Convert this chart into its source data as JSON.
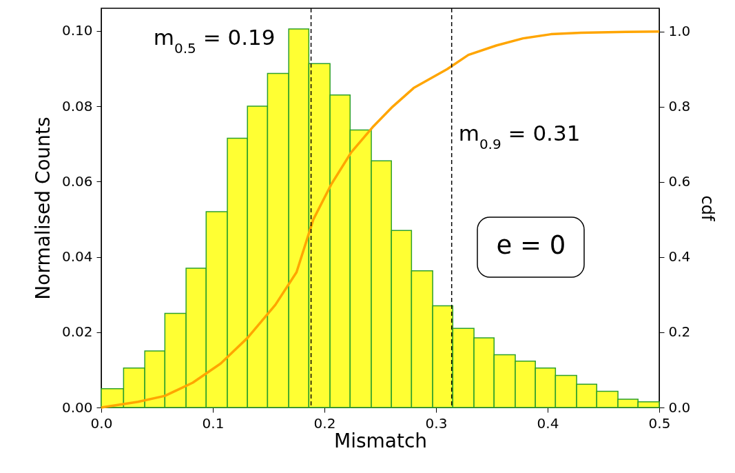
{
  "chart_data": {
    "type": "histogram",
    "xlabel": "Mismatch",
    "ylabel": "Normalised Counts",
    "y2label": "cdf",
    "xlim": [
      0,
      0.5
    ],
    "xticks": [
      {
        "value": 0,
        "label": "0.0"
      },
      0.1,
      0.2,
      0.3,
      0.4,
      {
        "value": 0.5,
        "label": "0.5"
      }
    ],
    "ylim": [
      0,
      0.106
    ],
    "yticks": [
      {
        "value": 0,
        "label": "0.00"
      },
      {
        "value": 0.02,
        "label": "0.02"
      },
      {
        "value": 0.04,
        "label": "0.04"
      },
      {
        "value": 0.06,
        "label": "0.06"
      },
      {
        "value": 0.08,
        "label": "0.08"
      },
      {
        "value": 0.1,
        "label": "0.10"
      }
    ],
    "y2lim": [
      0,
      1.062
    ],
    "y2ticks": [
      {
        "value": 0,
        "label": "0.0"
      },
      0.2,
      0.4,
      0.6,
      0.8,
      {
        "value": 1,
        "label": "1.0"
      }
    ],
    "grid": false,
    "series": [
      {
        "color": "#ffff33",
        "bins": [
          0,
          0.02,
          0.039,
          0.057,
          0.076,
          0.094,
          0.113,
          0.131,
          0.149,
          0.168,
          0.186,
          0.205,
          0.223,
          0.242,
          0.26,
          0.278,
          0.297,
          0.315,
          0.334,
          0.352,
          0.371,
          0.389,
          0.407,
          0.426,
          0.444,
          0.463,
          0.481,
          0.5
        ],
        "values": [
          0.005,
          0.0105,
          0.015,
          0.025,
          0.037,
          0.052,
          0.0715,
          0.08,
          0.0887,
          0.1005,
          0.0913,
          0.083,
          0.0737,
          0.0655,
          0.047,
          0.0363,
          0.027,
          0.021,
          0.0185,
          0.014,
          0.0123,
          0.0105,
          0.0085,
          0.0062,
          0.0043,
          0.0022,
          0.0015
        ]
      },
      {
        "type": "line",
        "axis": "y2",
        "color": "#ffa500",
        "x": [
          0,
          0.033,
          0.057,
          0.082,
          0.107,
          0.131,
          0.156,
          0.175,
          0.19,
          0.206,
          0.224,
          0.243,
          0.261,
          0.28,
          0.31,
          0.329,
          0.354,
          0.378,
          0.403,
          0.43,
          0.47,
          0.5
        ],
        "values": [
          0,
          0.015,
          0.031,
          0.066,
          0.117,
          0.185,
          0.273,
          0.36,
          0.5,
          0.593,
          0.679,
          0.745,
          0.8,
          0.85,
          0.9,
          0.938,
          0.963,
          0.982,
          0.993,
          0.997,
          0.999,
          1.0
        ]
      }
    ],
    "ref_lines": [
      {
        "axis": "x",
        "value": 0.188,
        "label": "m$_{0.5}$ = 0.19",
        "color": "#000000",
        "line_style": "dashed"
      },
      {
        "axis": "x",
        "value": 0.314,
        "label": "m$_{0.9}$ = 0.31",
        "color": "#000000",
        "line_style": "dashed"
      }
    ],
    "annotations": [
      "e = 0"
    ]
  }
}
